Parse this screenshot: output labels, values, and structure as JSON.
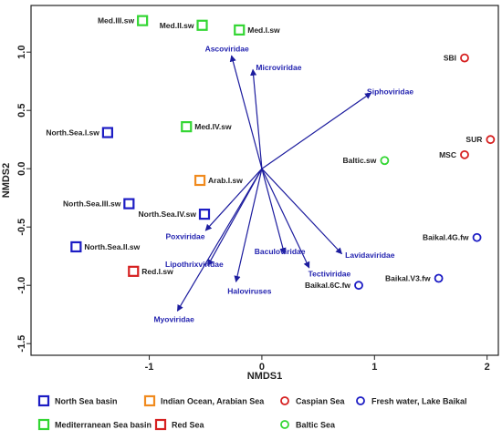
{
  "chart_data": {
    "type": "scatter",
    "xlabel": "NMDS1",
    "ylabel": "NMDS2",
    "xlim": [
      -2.05,
      2.1
    ],
    "ylim": [
      -1.6,
      1.4
    ],
    "xticks": [
      -1,
      0,
      1,
      2
    ],
    "yticks": [
      -1.5,
      -1.0,
      -0.5,
      0.0,
      0.5,
      1.0
    ],
    "groups": [
      {
        "name": "North Sea basin",
        "marker": "square",
        "color": "#1c1cc4"
      },
      {
        "name": "Indian Ocean, Arabian Sea",
        "marker": "square",
        "color": "#f08a1e"
      },
      {
        "name": "Caspian Sea",
        "marker": "circle",
        "color": "#d62020"
      },
      {
        "name": "Fresh water, Lake Baikal",
        "marker": "circle",
        "color": "#1c1cc4"
      },
      {
        "name": "Mediterranean Sea basin",
        "marker": "square",
        "color": "#33d633"
      },
      {
        "name": "Red Sea",
        "marker": "square",
        "color": "#d62020"
      },
      {
        "name": "Baltic Sea",
        "marker": "circle",
        "color": "#33d633"
      }
    ],
    "points": [
      {
        "label": "Med.III.sw",
        "x": -1.06,
        "y": 1.27,
        "group": 4,
        "anchor": "end"
      },
      {
        "label": "Med.II.sw",
        "x": -0.53,
        "y": 1.23,
        "group": 4,
        "anchor": "end"
      },
      {
        "label": "Med.I.sw",
        "x": -0.2,
        "y": 1.19,
        "group": 4,
        "anchor": "start"
      },
      {
        "label": "Med.IV.sw",
        "x": -0.67,
        "y": 0.36,
        "group": 4,
        "anchor": "start"
      },
      {
        "label": "North.Sea.I.sw",
        "x": -1.37,
        "y": 0.31,
        "group": 0,
        "anchor": "end"
      },
      {
        "label": "Arab.I.sw",
        "x": -0.55,
        "y": -0.1,
        "group": 1,
        "anchor": "start"
      },
      {
        "label": "North.Sea.III.sw",
        "x": -1.18,
        "y": -0.3,
        "group": 0,
        "anchor": "end"
      },
      {
        "label": "North.Sea.IV.sw",
        "x": -0.51,
        "y": -0.39,
        "group": 0,
        "anchor": "end"
      },
      {
        "label": "North.Sea.II.sw",
        "x": -1.65,
        "y": -0.67,
        "group": 0,
        "anchor": "start"
      },
      {
        "label": "Red.I.sw",
        "x": -1.14,
        "y": -0.88,
        "group": 5,
        "anchor": "start"
      },
      {
        "label": "SBI",
        "x": 1.8,
        "y": 0.95,
        "group": 2,
        "anchor": "end"
      },
      {
        "label": "SUR",
        "x": 2.03,
        "y": 0.25,
        "group": 2,
        "anchor": "end"
      },
      {
        "label": "MSC",
        "x": 1.8,
        "y": 0.12,
        "group": 2,
        "anchor": "end"
      },
      {
        "label": "Baltic.sw",
        "x": 1.09,
        "y": 0.07,
        "group": 6,
        "anchor": "end"
      },
      {
        "label": "Baikal.4G.fw",
        "x": 1.91,
        "y": -0.59,
        "group": 3,
        "anchor": "end"
      },
      {
        "label": "Baikal.V3.fw",
        "x": 1.57,
        "y": -0.94,
        "group": 3,
        "anchor": "end"
      },
      {
        "label": "Baikal.6C.fw",
        "x": 0.86,
        "y": -1.0,
        "group": 3,
        "anchor": "end"
      }
    ],
    "vectors": [
      {
        "label": "Ascoviridae",
        "x": -0.27,
        "y": 0.97,
        "lx": -0.31,
        "ly": 1.03,
        "anchor": "middle"
      },
      {
        "label": "Microviridae",
        "x": -0.08,
        "y": 0.85,
        "lx": 0.15,
        "ly": 0.87,
        "anchor": "middle"
      },
      {
        "label": "Siphoviridae",
        "x": 0.97,
        "y": 0.65,
        "lx": 1.14,
        "ly": 0.66,
        "anchor": "middle"
      },
      {
        "label": "Poxviridae",
        "x": -0.5,
        "y": -0.53,
        "lx": -0.68,
        "ly": -0.58,
        "anchor": "middle"
      },
      {
        "label": "Baculoviridae",
        "x": 0.2,
        "y": -0.73,
        "lx": 0.16,
        "ly": -0.71,
        "anchor": "middle"
      },
      {
        "label": "Lavidaviridae",
        "x": 0.71,
        "y": -0.73,
        "lx": 0.96,
        "ly": -0.74,
        "anchor": "middle"
      },
      {
        "label": "Lipothrixviridae",
        "x": -0.48,
        "y": -0.83,
        "lx": -0.6,
        "ly": -0.82,
        "anchor": "middle"
      },
      {
        "label": "Tectiviridae",
        "x": 0.42,
        "y": -0.85,
        "lx": 0.6,
        "ly": -0.9,
        "anchor": "middle"
      },
      {
        "label": "Haloviruses",
        "x": -0.23,
        "y": -0.97,
        "lx": -0.11,
        "ly": -1.05,
        "anchor": "middle"
      },
      {
        "label": "Myoviridae",
        "x": -0.75,
        "y": -1.22,
        "lx": -0.78,
        "ly": -1.29,
        "anchor": "middle"
      }
    ],
    "legend": "bottom"
  }
}
